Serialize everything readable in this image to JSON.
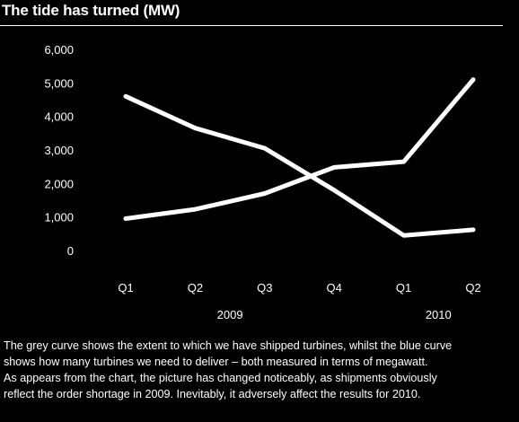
{
  "chart_data": {
    "type": "line",
    "title": "The tide has turned (MW)",
    "categories": [
      "Q1",
      "Q2",
      "Q3",
      "Q4",
      "Q1",
      "Q2"
    ],
    "year_labels": [
      "2009",
      "2010"
    ],
    "yticks": [
      "6,000",
      "5,000",
      "4,000",
      "3,000",
      "2,000",
      "1,000",
      "0"
    ],
    "ylim": [
      0,
      6000
    ],
    "grid": false,
    "series": [
      {
        "values": [
          4600,
          3650,
          3050,
          1800,
          450,
          620
        ]
      },
      {
        "values": [
          950,
          1230,
          1700,
          2480,
          2650,
          5100
        ]
      }
    ],
    "line_color": "#ffffff"
  },
  "caption": {
    "lines": [
      "The grey curve shows the extent to which we have shipped turbines, whilst the blue curve",
      "shows how many turbines we need to deliver – both measured in terms of megawatt.",
      "As appears from the chart, the picture has changed noticeably, as shipments obviously",
      "reflect the order shortage in 2009. Inevitably, it adversely affect the results for 2010."
    ]
  }
}
